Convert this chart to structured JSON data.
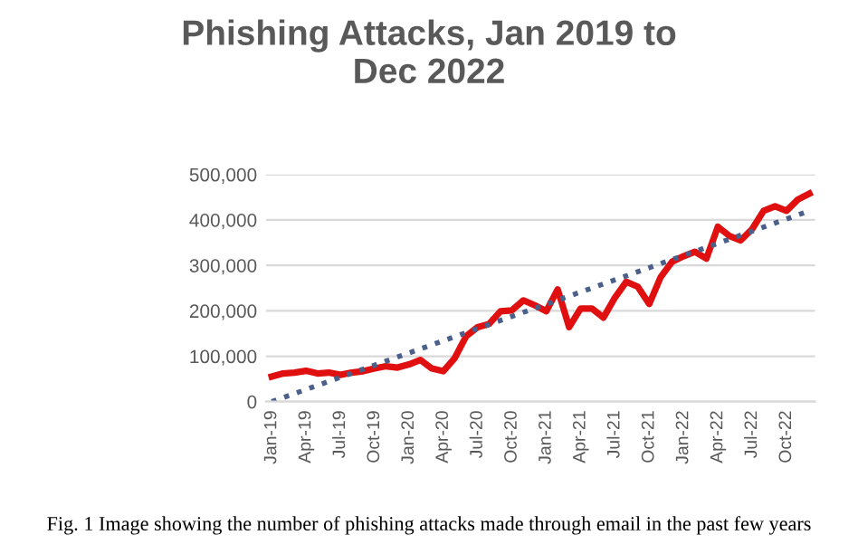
{
  "chart_data": {
    "type": "line",
    "title": "Phishing Attacks, Jan 2019 to\nDec 2022",
    "categories": [
      "Jan-19",
      null,
      null,
      "Apr-19",
      null,
      null,
      "Jul-19",
      null,
      null,
      "Oct-19",
      null,
      null,
      "Jan-20",
      null,
      null,
      "Apr-20",
      null,
      null,
      "Jul-20",
      null,
      null,
      "Oct-20",
      null,
      null,
      "Jan-21",
      null,
      null,
      "Apr-21",
      null,
      null,
      "Jul-21",
      null,
      null,
      "Oct-21",
      null,
      null,
      "Jan-22",
      null,
      null,
      "Apr-22",
      null,
      null,
      "Jul-22",
      null,
      null,
      "Oct-22",
      null,
      null
    ],
    "series": [
      {
        "color": "#e01010",
        "line_style": "solid",
        "values": [
          55000,
          62000,
          64000,
          68000,
          62000,
          64000,
          59000,
          64000,
          67000,
          73000,
          78000,
          75000,
          82000,
          92000,
          73000,
          67000,
          96000,
          144000,
          164000,
          171000,
          199000,
          201000,
          223000,
          212000,
          199000,
          247000,
          164000,
          205000,
          205000,
          185000,
          229000,
          264000,
          253000,
          215000,
          274000,
          308000,
          320000,
          330000,
          315000,
          385000,
          365000,
          355000,
          380000,
          420000,
          430000,
          420000,
          445000,
          458000
        ]
      },
      {
        "color": "#4a5f8a",
        "line_style": "dotted",
        "values": [
          0,
          null,
          null,
          null,
          null,
          null,
          null,
          null,
          null,
          null,
          null,
          null,
          null,
          null,
          null,
          null,
          null,
          null,
          null,
          null,
          null,
          null,
          null,
          null,
          null,
          null,
          null,
          null,
          null,
          null,
          null,
          null,
          null,
          null,
          null,
          null,
          null,
          null,
          null,
          null,
          null,
          null,
          null,
          null,
          null,
          null,
          null,
          420000
        ]
      }
    ],
    "ylim": [
      0,
      500000
    ],
    "yticks": [
      {
        "value": 0,
        "label": "0"
      },
      {
        "value": 100000,
        "label": "100,000"
      },
      {
        "value": 200000,
        "label": "200,000"
      },
      {
        "value": 300000,
        "label": "300,000"
      },
      {
        "value": 400000,
        "label": "400,000"
      },
      {
        "value": 500000,
        "label": "500,000"
      }
    ],
    "grid": "y",
    "legend": false,
    "marker": "none",
    "annotations": [
      "Fig. 1 Image showing the number of phishing attacks made through email in the past few years"
    ]
  }
}
